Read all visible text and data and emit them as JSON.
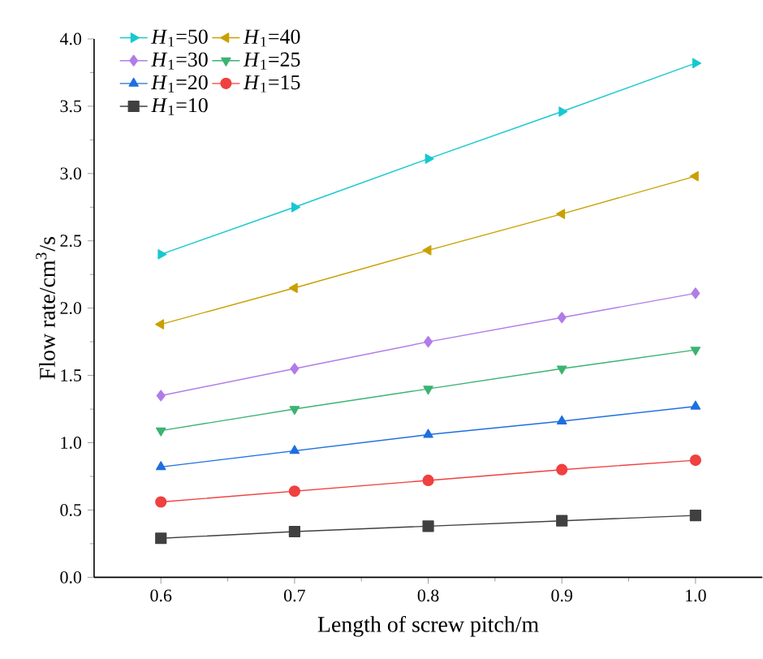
{
  "chart_data": {
    "type": "line",
    "xlabel": "Length of screw pitch/m",
    "ylabel": "Flow rate/cm$^{3}$/s",
    "x": [
      0.6,
      0.7,
      0.8,
      0.9,
      1.0
    ],
    "series": [
      {
        "name": "*H*$_{1}$=50",
        "color": "#17c8d0",
        "marker": "triangle-right",
        "values": [
          2.4,
          2.75,
          3.11,
          3.46,
          3.82
        ]
      },
      {
        "name": "*H*$_{1}$=40",
        "color": "#c9a000",
        "marker": "triangle-left",
        "values": [
          1.88,
          2.15,
          2.43,
          2.7,
          2.98
        ]
      },
      {
        "name": "*H*$_{1}$=30",
        "color": "#b07ce8",
        "marker": "diamond",
        "values": [
          1.35,
          1.55,
          1.75,
          1.93,
          2.11
        ]
      },
      {
        "name": "*H*$_{1}$=25",
        "color": "#3cb371",
        "marker": "triangle-down",
        "values": [
          1.09,
          1.25,
          1.4,
          1.55,
          1.69
        ]
      },
      {
        "name": "*H*$_{1}$=20",
        "color": "#1f6fe0",
        "marker": "triangle",
        "values": [
          0.82,
          0.94,
          1.06,
          1.16,
          1.27
        ]
      },
      {
        "name": "*H*$_{1}$=15",
        "color": "#f04040",
        "marker": "circle",
        "values": [
          0.56,
          0.64,
          0.72,
          0.8,
          0.87
        ]
      },
      {
        "name": "*H*$_{1}$=10",
        "color": "#404040",
        "marker": "square",
        "values": [
          0.29,
          0.34,
          0.38,
          0.42,
          0.46
        ]
      }
    ],
    "xlim": [
      0.55,
      1.05
    ],
    "xticks": [
      0.6,
      0.7,
      0.8,
      0.9,
      {
        "value": 1.0,
        "label": "1.0"
      }
    ],
    "ylim": [
      0,
      4.0
    ],
    "yticks": [
      {
        "value": 0,
        "label": "0.0"
      },
      0.5,
      {
        "value": 1.0,
        "label": "1.0"
      },
      1.5,
      {
        "value": 2.0,
        "label": "2.0"
      },
      2.5,
      {
        "value": 3.0,
        "label": "3.0"
      },
      3.5,
      {
        "value": 4.0,
        "label": "4.0"
      }
    ],
    "grid": false,
    "legend": "top left",
    "line_style": "solid"
  }
}
